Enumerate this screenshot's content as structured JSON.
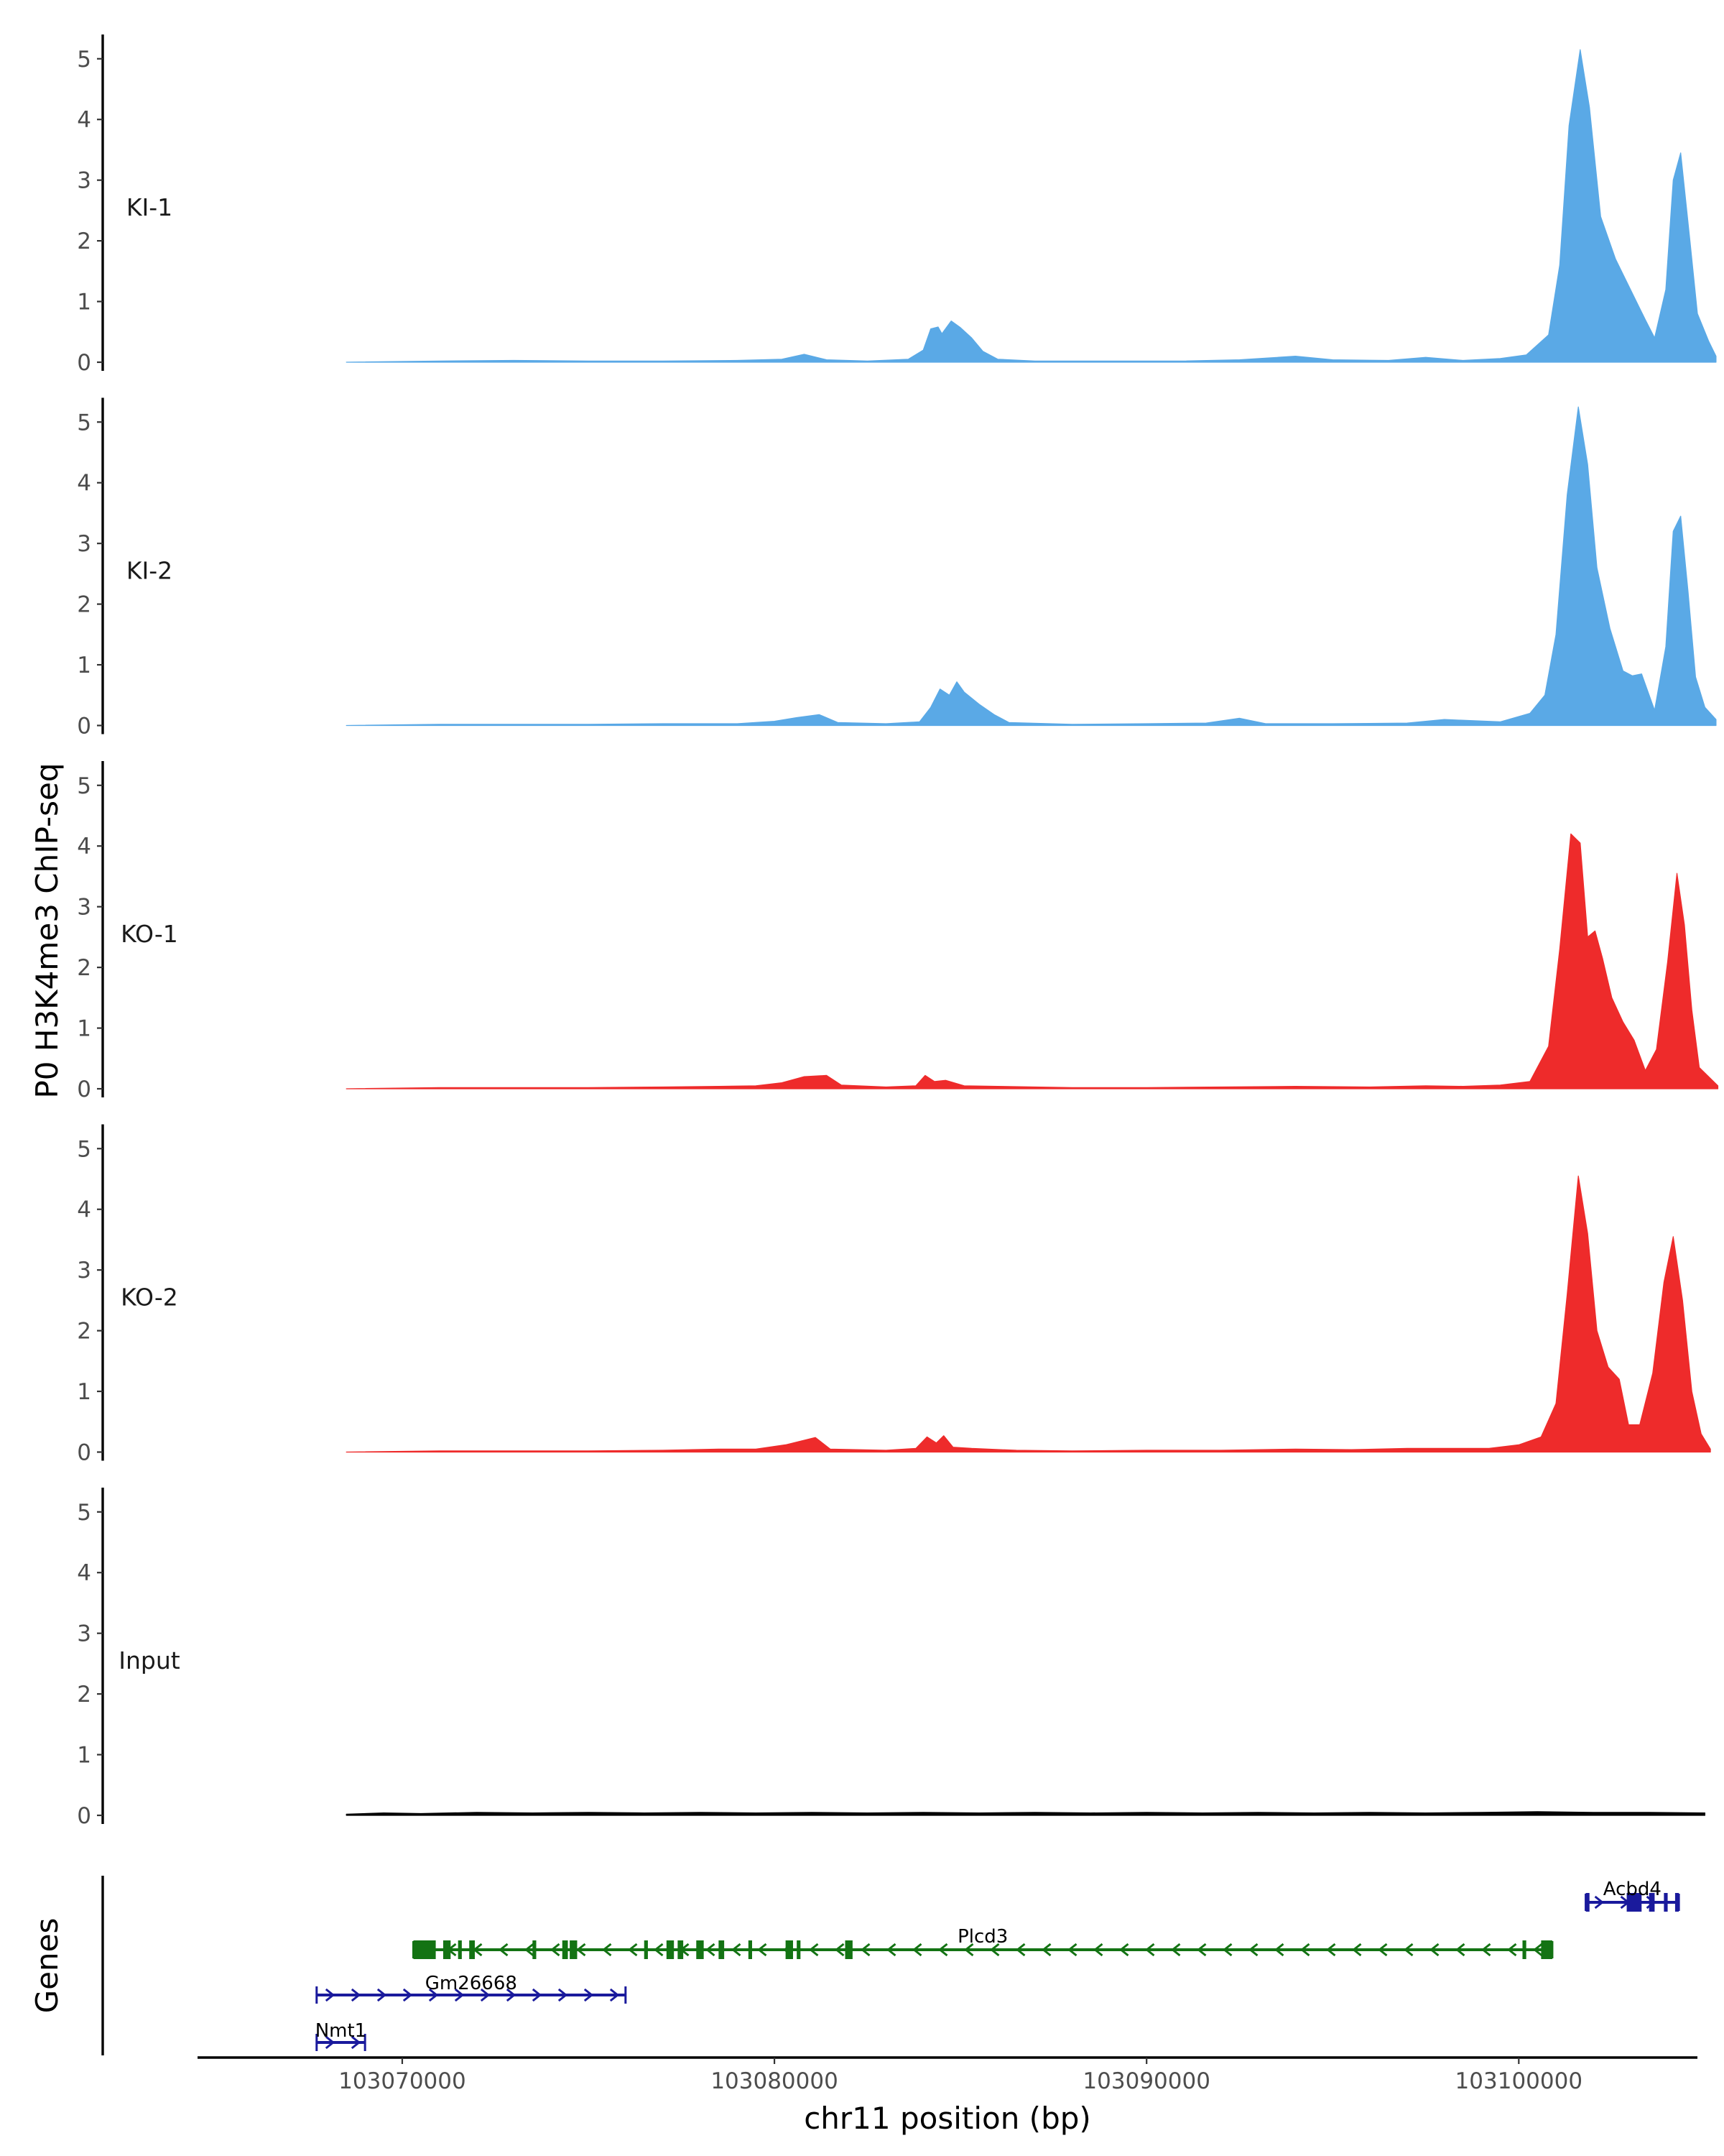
{
  "chart_data": {
    "type": "area",
    "ylabel": "P0 H3K4me3 ChIP-seq",
    "xlabel": "chr11 position (bp)",
    "genes_label": "Genes",
    "xlim": [
      103064500,
      103104800
    ],
    "x_ticks": [
      103070000,
      103080000,
      103090000,
      103100000
    ],
    "ylim": [
      0,
      5.4
    ],
    "y_ticks": [
      0,
      1,
      2,
      3,
      4,
      5
    ],
    "colors": {
      "KI": "#5aa9e6",
      "KO": "#ee2b2b",
      "Input": "#000000",
      "gene_plus": "#1a1a9c",
      "gene_minus": "#137313"
    },
    "tracks": [
      {
        "name": "KI-1",
        "color": "#5aa9e6",
        "points": [
          [
            103068500,
            0
          ],
          [
            103071000,
            0.02
          ],
          [
            103073000,
            0.03
          ],
          [
            103075000,
            0.02
          ],
          [
            103077000,
            0.02
          ],
          [
            103079000,
            0.03
          ],
          [
            103080200,
            0.05
          ],
          [
            103080800,
            0.13
          ],
          [
            103081400,
            0.04
          ],
          [
            103082500,
            0.02
          ],
          [
            103083600,
            0.05
          ],
          [
            103084000,
            0.2
          ],
          [
            103084200,
            0.55
          ],
          [
            103084400,
            0.58
          ],
          [
            103084500,
            0.47
          ],
          [
            103084750,
            0.68
          ],
          [
            103085000,
            0.57
          ],
          [
            103085300,
            0.4
          ],
          [
            103085600,
            0.18
          ],
          [
            103086000,
            0.05
          ],
          [
            103087000,
            0.02
          ],
          [
            103089000,
            0.02
          ],
          [
            103091000,
            0.02
          ],
          [
            103092500,
            0.04
          ],
          [
            103094000,
            0.1
          ],
          [
            103095000,
            0.04
          ],
          [
            103096500,
            0.03
          ],
          [
            103097500,
            0.08
          ],
          [
            103098500,
            0.03
          ],
          [
            103099500,
            0.06
          ],
          [
            103100200,
            0.12
          ],
          [
            103100800,
            0.45
          ],
          [
            103101100,
            1.6
          ],
          [
            103101350,
            3.9
          ],
          [
            103101650,
            5.15
          ],
          [
            103101900,
            4.2
          ],
          [
            103102200,
            2.4
          ],
          [
            103102600,
            1.7
          ],
          [
            103103000,
            1.2
          ],
          [
            103103400,
            0.7
          ],
          [
            103103650,
            0.4
          ],
          [
            103103950,
            1.2
          ],
          [
            103104150,
            3.0
          ],
          [
            103104350,
            3.45
          ],
          [
            103104600,
            2.0
          ],
          [
            103104800,
            0.8
          ],
          [
            103105100,
            0.35
          ],
          [
            103105300,
            0.1
          ]
        ]
      },
      {
        "name": "KI-2",
        "color": "#5aa9e6",
        "points": [
          [
            103068500,
            0
          ],
          [
            103071000,
            0.02
          ],
          [
            103073000,
            0.02
          ],
          [
            103075000,
            0.02
          ],
          [
            103077000,
            0.03
          ],
          [
            103079000,
            0.03
          ],
          [
            103080000,
            0.07
          ],
          [
            103080600,
            0.13
          ],
          [
            103081200,
            0.18
          ],
          [
            103081700,
            0.05
          ],
          [
            103083000,
            0.03
          ],
          [
            103083900,
            0.06
          ],
          [
            103084200,
            0.3
          ],
          [
            103084450,
            0.6
          ],
          [
            103084700,
            0.5
          ],
          [
            103084900,
            0.72
          ],
          [
            103085100,
            0.55
          ],
          [
            103085500,
            0.35
          ],
          [
            103085900,
            0.18
          ],
          [
            103086300,
            0.05
          ],
          [
            103088000,
            0.02
          ],
          [
            103090000,
            0.03
          ],
          [
            103091600,
            0.04
          ],
          [
            103092500,
            0.12
          ],
          [
            103093200,
            0.03
          ],
          [
            103095000,
            0.03
          ],
          [
            103097000,
            0.04
          ],
          [
            103098000,
            0.1
          ],
          [
            103099500,
            0.06
          ],
          [
            103100300,
            0.2
          ],
          [
            103100700,
            0.5
          ],
          [
            103101000,
            1.5
          ],
          [
            103101300,
            3.8
          ],
          [
            103101600,
            5.25
          ],
          [
            103101850,
            4.3
          ],
          [
            103102100,
            2.6
          ],
          [
            103102450,
            1.6
          ],
          [
            103102800,
            0.9
          ],
          [
            103103050,
            0.82
          ],
          [
            103103300,
            0.85
          ],
          [
            103103650,
            0.25
          ],
          [
            103103950,
            1.3
          ],
          [
            103104150,
            3.2
          ],
          [
            103104350,
            3.45
          ],
          [
            103104550,
            2.2
          ],
          [
            103104750,
            0.8
          ],
          [
            103105000,
            0.3
          ],
          [
            103105300,
            0.1
          ]
        ]
      },
      {
        "name": "KO-1",
        "color": "#ee2b2b",
        "points": [
          [
            103068500,
            0
          ],
          [
            103071000,
            0.02
          ],
          [
            103073000,
            0.02
          ],
          [
            103075000,
            0.02
          ],
          [
            103077000,
            0.03
          ],
          [
            103078500,
            0.04
          ],
          [
            103079500,
            0.05
          ],
          [
            103080200,
            0.1
          ],
          [
            103080800,
            0.2
          ],
          [
            103081400,
            0.22
          ],
          [
            103081800,
            0.06
          ],
          [
            103083000,
            0.03
          ],
          [
            103083800,
            0.05
          ],
          [
            103084050,
            0.22
          ],
          [
            103084300,
            0.12
          ],
          [
            103084600,
            0.14
          ],
          [
            103085100,
            0.05
          ],
          [
            103086000,
            0.04
          ],
          [
            103088000,
            0.02
          ],
          [
            103090000,
            0.02
          ],
          [
            103092000,
            0.03
          ],
          [
            103094000,
            0.04
          ],
          [
            103096000,
            0.03
          ],
          [
            103097500,
            0.05
          ],
          [
            103098500,
            0.04
          ],
          [
            103099500,
            0.06
          ],
          [
            103100300,
            0.12
          ],
          [
            103100800,
            0.7
          ],
          [
            103101100,
            2.3
          ],
          [
            103101400,
            4.2
          ],
          [
            103101650,
            4.05
          ],
          [
            103101850,
            2.5
          ],
          [
            103102050,
            2.6
          ],
          [
            103102250,
            2.15
          ],
          [
            103102500,
            1.5
          ],
          [
            103102800,
            1.1
          ],
          [
            103103100,
            0.8
          ],
          [
            103103400,
            0.3
          ],
          [
            103103700,
            0.65
          ],
          [
            103104000,
            2.1
          ],
          [
            103104250,
            3.55
          ],
          [
            103104450,
            2.7
          ],
          [
            103104650,
            1.3
          ],
          [
            103104850,
            0.35
          ],
          [
            103105100,
            0.2
          ],
          [
            103105350,
            0.05
          ]
        ]
      },
      {
        "name": "KO-2",
        "color": "#ee2b2b",
        "points": [
          [
            103068500,
            0
          ],
          [
            103071000,
            0.02
          ],
          [
            103073000,
            0.02
          ],
          [
            103075000,
            0.02
          ],
          [
            103077000,
            0.03
          ],
          [
            103078500,
            0.05
          ],
          [
            103079500,
            0.05
          ],
          [
            103080300,
            0.12
          ],
          [
            103080700,
            0.18
          ],
          [
            103081100,
            0.24
          ],
          [
            103081500,
            0.05
          ],
          [
            103083000,
            0.03
          ],
          [
            103083800,
            0.06
          ],
          [
            103084100,
            0.25
          ],
          [
            103084350,
            0.15
          ],
          [
            103084550,
            0.27
          ],
          [
            103084800,
            0.08
          ],
          [
            103085300,
            0.06
          ],
          [
            103086500,
            0.03
          ],
          [
            103088000,
            0.02
          ],
          [
            103090000,
            0.03
          ],
          [
            103092000,
            0.03
          ],
          [
            103094000,
            0.05
          ],
          [
            103095500,
            0.04
          ],
          [
            103097000,
            0.06
          ],
          [
            103098000,
            0.06
          ],
          [
            103099200,
            0.06
          ],
          [
            103100000,
            0.12
          ],
          [
            103100600,
            0.25
          ],
          [
            103101000,
            0.8
          ],
          [
            103101300,
            2.6
          ],
          [
            103101600,
            4.55
          ],
          [
            103101850,
            3.6
          ],
          [
            103102100,
            2.0
          ],
          [
            103102400,
            1.4
          ],
          [
            103102700,
            1.2
          ],
          [
            103102950,
            0.45
          ],
          [
            103103250,
            0.45
          ],
          [
            103103600,
            1.3
          ],
          [
            103103900,
            2.8
          ],
          [
            103104150,
            3.55
          ],
          [
            103104400,
            2.5
          ],
          [
            103104650,
            1.0
          ],
          [
            103104900,
            0.3
          ],
          [
            103105150,
            0.05
          ]
        ]
      },
      {
        "name": "Input",
        "color": "#000000",
        "points": [
          [
            103068500,
            0.02
          ],
          [
            103069500,
            0.04
          ],
          [
            103070500,
            0.03
          ],
          [
            103072000,
            0.05
          ],
          [
            103073500,
            0.04
          ],
          [
            103075000,
            0.05
          ],
          [
            103076500,
            0.04
          ],
          [
            103078000,
            0.05
          ],
          [
            103079500,
            0.04
          ],
          [
            103081000,
            0.05
          ],
          [
            103082500,
            0.04
          ],
          [
            103084000,
            0.05
          ],
          [
            103085500,
            0.04
          ],
          [
            103087000,
            0.05
          ],
          [
            103088500,
            0.04
          ],
          [
            103090000,
            0.05
          ],
          [
            103091500,
            0.04
          ],
          [
            103093000,
            0.05
          ],
          [
            103094500,
            0.04
          ],
          [
            103096000,
            0.05
          ],
          [
            103097500,
            0.04
          ],
          [
            103099000,
            0.05
          ],
          [
            103100500,
            0.06
          ],
          [
            103102000,
            0.05
          ],
          [
            103103500,
            0.05
          ],
          [
            103105000,
            0.04
          ]
        ]
      }
    ],
    "genes": [
      {
        "name": "Acbd4",
        "strand": "+",
        "start": 103101800,
        "end": 103104300,
        "row": 0,
        "color": "#1a1a9c",
        "exons": [
          [
            103101800,
            103101900
          ],
          [
            103102900,
            103103300
          ],
          [
            103103500,
            103103650
          ],
          [
            103103900,
            103104000
          ],
          [
            103104200,
            103104300
          ]
        ]
      },
      {
        "name": "Plcd3",
        "strand": "-",
        "start": 103070300,
        "end": 103100900,
        "row": 1,
        "color": "#137313",
        "exons": [
          [
            103070300,
            103070900
          ],
          [
            103071100,
            103071300
          ],
          [
            103071500,
            103071600
          ],
          [
            103071800,
            103071950
          ],
          [
            103073500,
            103073600
          ],
          [
            103074300,
            103074450
          ],
          [
            103074500,
            103074700
          ],
          [
            103076500,
            103076600
          ],
          [
            103077100,
            103077300
          ],
          [
            103077400,
            103077550
          ],
          [
            103077900,
            103078100
          ],
          [
            103078500,
            103078650
          ],
          [
            103079300,
            103079400
          ],
          [
            103080300,
            103080500
          ],
          [
            103080600,
            103080700
          ],
          [
            103081900,
            103082100
          ],
          [
            103100100,
            103100200
          ],
          [
            103100600,
            103100900
          ]
        ]
      },
      {
        "name": "Gm26668",
        "strand": "+",
        "start": 103067700,
        "end": 103076000,
        "row": 2,
        "color": "#1a1a9c",
        "exons": []
      },
      {
        "name": "Nmt1",
        "strand": "+",
        "start": 103067700,
        "end": 103069000,
        "row": 3,
        "color": "#1a1a9c",
        "exons": []
      }
    ]
  }
}
